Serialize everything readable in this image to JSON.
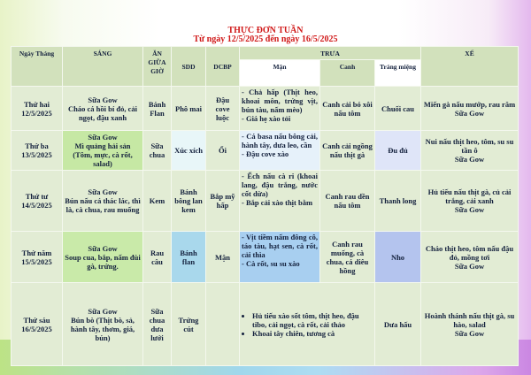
{
  "title": "THỰC ĐƠN TUẦN",
  "subtitle": "Từ ngày 12/5/2025 đến ngày 16/5/2025",
  "headers": {
    "date": "Ngày Tháng",
    "morning": "SÁNG",
    "snack": "ĂN GIỮA GIỜ",
    "sdd": "SDD",
    "dcbp": "DCBP",
    "lunch": "TRƯA",
    "main": "Mặn",
    "soup": "Canh",
    "dessert": "Tráng miệng",
    "afternoon": "XẾ"
  },
  "rows": [
    {
      "date": "Thứ hai 12/5/2025",
      "morning": "Sữa Gow\nCháo cá hồi bí đỏ, cải ngọt, đậu xanh",
      "snack": "Bánh Flan",
      "sdd": "Phô mai",
      "dcbp": "Đậu cove luộc",
      "main": "- Chả hấp (Thịt heo, khoai môn, trứng vịt, bún tàu, nấm mèo)\n- Giá hẹ xào tỏi",
      "soup": "Canh cải bó xôi nấu tôm",
      "dessert": "Chuối cau",
      "afternoon": "Miến gà nấu mướp, rau răm\nSữa Gow"
    },
    {
      "date": "Thứ ba 13/5/2025",
      "morning": "Sữa Gow\nMì quảng hải sản (Tôm, mực, cà rốt, salad)",
      "snack": "Sữa chua",
      "sdd": "Xúc xích",
      "dcbp": "Ổi",
      "main": "- Cá basa nấu bông cải, hành tây, dưa leo, cần\n- Đậu cove xào",
      "soup": "Canh cải ngồng nấu thịt gà",
      "dessert": "Đu đủ",
      "afternoon": "Nui nấu thịt heo, tôm, su su tần ô\nSữa Gow"
    },
    {
      "date": "Thứ tư 14/5/2025",
      "morning": "Sữa Gow\nBún nấu cá thác lác, thì là, cà chua, rau muống",
      "snack": "Kem",
      "sdd": "Bánh bông lan kem",
      "dcbp": "Bắp mỹ hấp",
      "main": "- Ếch nấu cà ri (khoai lang, đậu trắng, nước cốt dừa)\n- Bắp cải xào thịt bằm",
      "soup": "Canh rau dền nấu tôm",
      "dessert": "Thanh long",
      "afternoon": "Hủ tiếu nấu thịt gà, củ cải trắng, cải xanh\nSữa Gow"
    },
    {
      "date": "Thứ năm 15/5/2025",
      "morning": "Sữa Gow\nSoup cua, bắp, nấm đùi gà, trứng.",
      "snack": "Rau câu",
      "sdd": "Bánh flan",
      "dcbp": "Mận",
      "main": "- Vịt tiềm nấm đông cô, táo tàu, hạt sen, cà rốt, cải thìa\n- Cà rốt, su su xào",
      "soup": "Canh rau muống, cà chua, cá diêu hồng",
      "dessert": "Nho",
      "afternoon": "Cháo thịt heo, tôm nấu đậu đỏ, mồng tơi\nSữa Gow"
    },
    {
      "date": "Thứ sáu 16/5/2025",
      "morning": "Sữa Gow\nBún bò (Thịt bò, sả, hành tây, thơm, giá, bún)",
      "snack": "Sữa chua dưa lưới",
      "sdd": "Trứng cút",
      "dcbp": "",
      "main_items": [
        "Hủ tiếu xào sốt tôm, thịt heo, đậu tibo, cải ngọt, cà rốt, cải thảo",
        "Khoai tây chiên, tương cà"
      ],
      "dessert": "Dưa hấu",
      "afternoon": "Hoành thánh nấu thịt gà, su hào, salad\nSữa Gow"
    }
  ]
}
